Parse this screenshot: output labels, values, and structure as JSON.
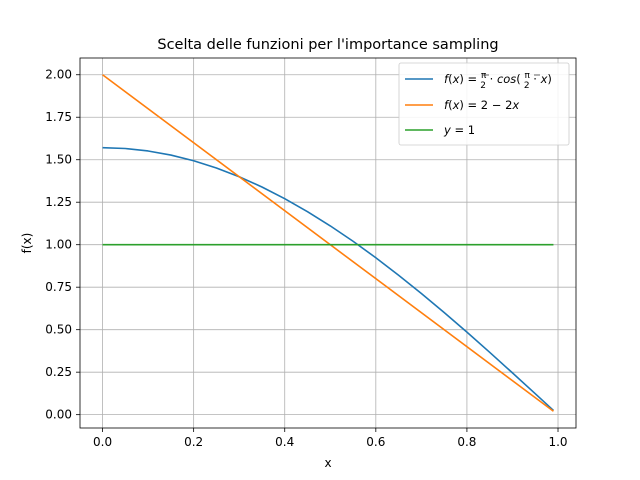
{
  "chart_data": {
    "type": "line",
    "title": "Scelta delle funzioni per l'importance sampling",
    "xlabel": "x",
    "ylabel": "f(x)",
    "xlim": [
      -0.0495,
      1.0395
    ],
    "ylim": [
      -0.0785,
      2.0985
    ],
    "xticks": [
      0.0,
      0.2,
      0.4,
      0.6,
      0.8,
      1.0
    ],
    "xtick_labels": [
      "0.0",
      "0.2",
      "0.4",
      "0.6",
      "0.8",
      "1.0"
    ],
    "yticks": [
      0.0,
      0.25,
      0.5,
      0.75,
      1.0,
      1.25,
      1.5,
      1.75,
      2.0
    ],
    "ytick_labels": [
      "0.00",
      "0.25",
      "0.50",
      "0.75",
      "1.00",
      "1.25",
      "1.50",
      "1.75",
      "2.00"
    ],
    "grid": true,
    "legend_position": "top-right",
    "x_domain": [
      0.0,
      0.99
    ],
    "series": [
      {
        "name": "f(x) = π/2 · cos(π/2 · x)",
        "color": "#1f77b4",
        "x": [
          0.0,
          0.05,
          0.1,
          0.15,
          0.2,
          0.25,
          0.3,
          0.35,
          0.4,
          0.45,
          0.5,
          0.55,
          0.6,
          0.65,
          0.7,
          0.75,
          0.8,
          0.85,
          0.9,
          0.95,
          0.99
        ],
        "y": [
          1.5708,
          1.566,
          1.5514,
          1.5274,
          1.4939,
          1.4512,
          1.3996,
          1.3395,
          1.2708,
          1.1944,
          1.1107,
          1.0203,
          0.9233,
          0.8205,
          0.7131,
          0.6011,
          0.4854,
          0.3667,
          0.2457,
          0.1232,
          0.0247
        ]
      },
      {
        "name": "f(x) = 2 − 2x",
        "color": "#ff7f0e",
        "x": [
          0.0,
          0.99
        ],
        "y": [
          2.0,
          0.02
        ]
      },
      {
        "name": "y = 1",
        "color": "#2ca02c",
        "x": [
          0.0,
          0.99
        ],
        "y": [
          1.0,
          1.0
        ]
      }
    ]
  }
}
